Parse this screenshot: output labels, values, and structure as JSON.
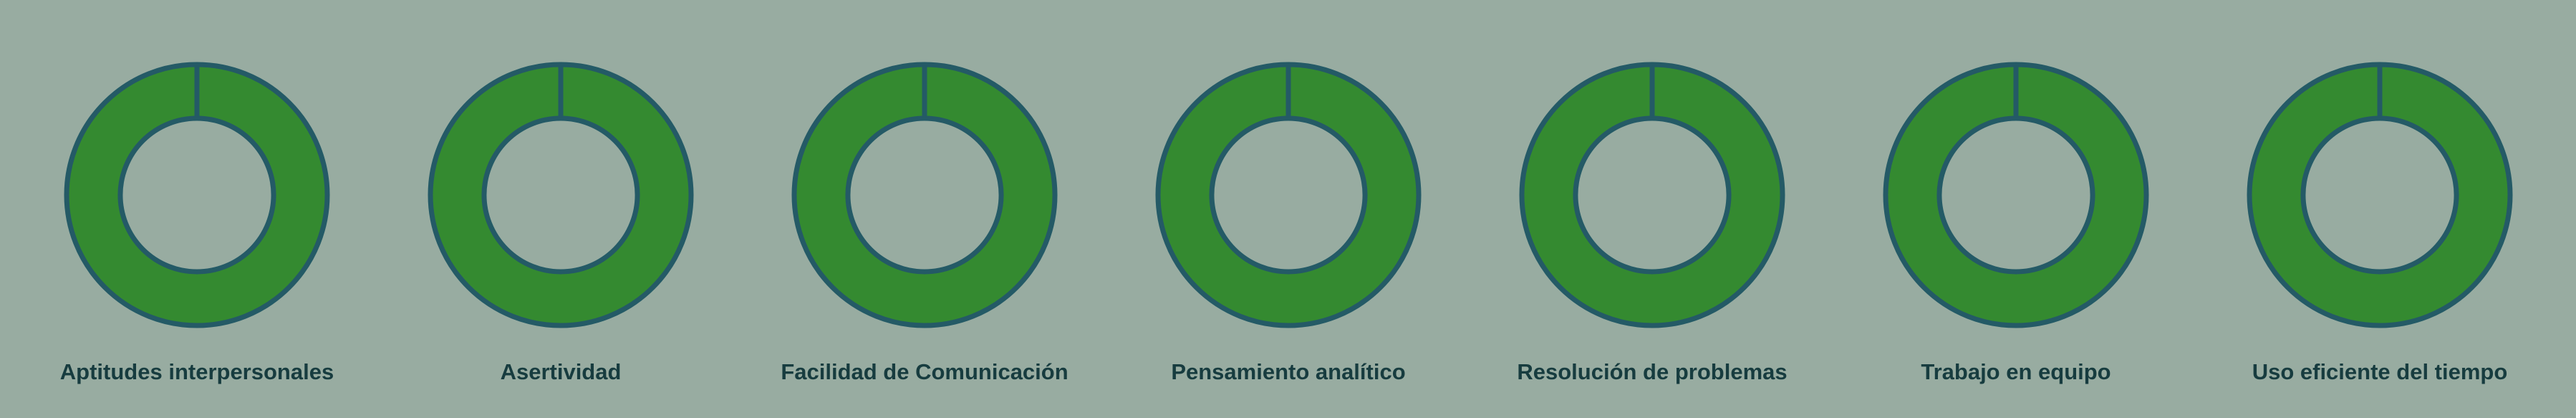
{
  "chart_data": {
    "type": "pie",
    "variant": "donut",
    "charts": [
      {
        "label": "Aptitudes interpersonales",
        "value": 100
      },
      {
        "label": "Asertividad",
        "value": 100
      },
      {
        "label": "Facilidad de Comunicación",
        "value": 100
      },
      {
        "label": "Pensamiento analítico",
        "value": 100
      },
      {
        "label": "Resolución de problemas",
        "value": 100
      },
      {
        "label": "Trabajo en equipo",
        "value": 100
      },
      {
        "label": "Uso eficiente del tiempo",
        "value": 100
      }
    ],
    "colors": {
      "fill": "#348a30",
      "stroke": "#245a66",
      "background": "#98aca1",
      "label": "#173c3f"
    },
    "legend": "none",
    "grid": false
  }
}
